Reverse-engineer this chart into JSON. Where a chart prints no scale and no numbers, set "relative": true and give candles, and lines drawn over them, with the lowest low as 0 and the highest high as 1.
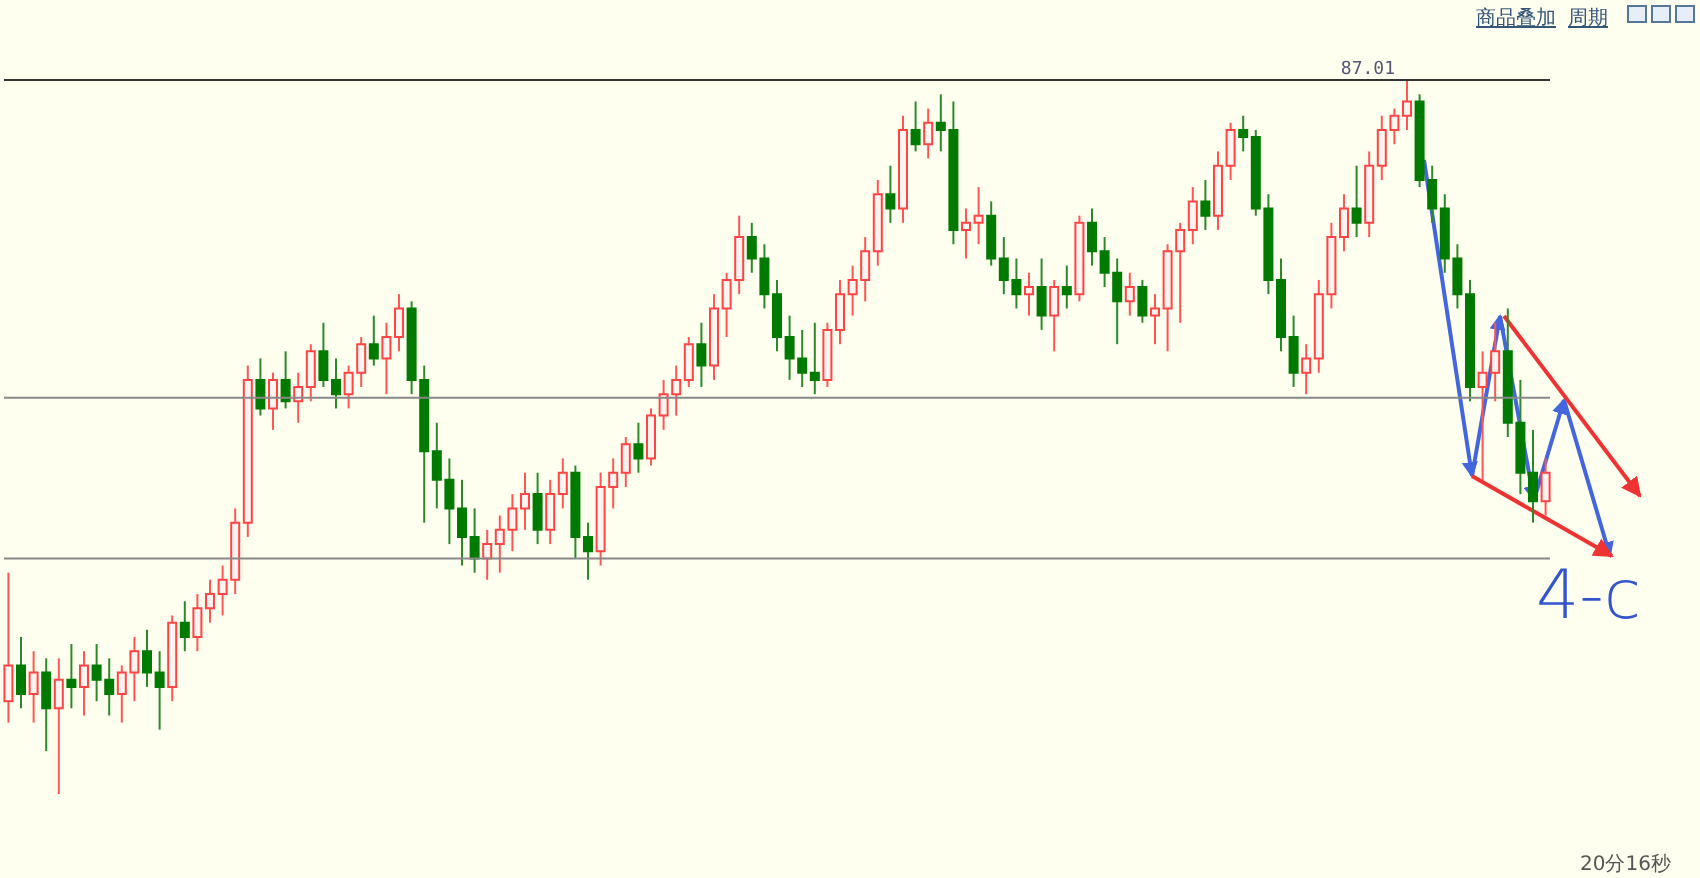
{
  "chart_data": {
    "type": "candlestick",
    "relative": true,
    "categories": [
      null,
      null,
      null,
      null,
      null,
      null,
      null,
      null,
      null,
      null,
      null,
      null,
      null,
      null,
      null,
      null,
      null,
      null,
      null,
      null,
      null,
      null,
      null,
      null,
      null,
      null,
      null,
      null,
      null,
      null,
      null,
      null,
      null,
      null,
      null,
      null,
      null,
      null,
      null,
      null,
      null,
      null,
      null,
      null,
      null,
      null,
      null,
      null,
      null,
      null,
      null,
      null,
      null,
      null,
      null,
      null,
      null,
      null,
      null,
      null,
      null,
      null,
      null,
      null,
      null,
      null,
      null,
      null,
      null,
      null,
      null,
      null,
      null,
      null,
      null,
      null,
      null,
      null,
      null,
      null,
      null,
      null,
      null,
      null,
      null,
      null,
      null,
      null,
      null,
      null,
      null,
      null,
      null,
      null,
      null,
      null,
      null,
      null,
      null,
      null,
      null,
      null,
      null,
      null,
      null,
      null,
      null,
      null,
      null,
      null,
      null,
      null,
      null,
      null,
      null,
      null,
      null,
      null,
      null,
      null,
      null,
      null,
      null
    ],
    "ohlc": [
      [
        0.13,
        0.31,
        0.1,
        0.18
      ],
      [
        0.18,
        0.22,
        0.12,
        0.14
      ],
      [
        0.14,
        0.2,
        0.1,
        0.17
      ],
      [
        0.17,
        0.19,
        0.06,
        0.12
      ],
      [
        0.12,
        0.19,
        0.0,
        0.16
      ],
      [
        0.16,
        0.21,
        0.12,
        0.15
      ],
      [
        0.15,
        0.2,
        0.11,
        0.18
      ],
      [
        0.18,
        0.21,
        0.13,
        0.16
      ],
      [
        0.16,
        0.19,
        0.11,
        0.14
      ],
      [
        0.14,
        0.18,
        0.1,
        0.17
      ],
      [
        0.17,
        0.22,
        0.13,
        0.2
      ],
      [
        0.2,
        0.23,
        0.15,
        0.17
      ],
      [
        0.17,
        0.2,
        0.09,
        0.15
      ],
      [
        0.15,
        0.25,
        0.13,
        0.24
      ],
      [
        0.24,
        0.27,
        0.2,
        0.22
      ],
      [
        0.22,
        0.28,
        0.2,
        0.26
      ],
      [
        0.26,
        0.3,
        0.24,
        0.28
      ],
      [
        0.28,
        0.32,
        0.25,
        0.3
      ],
      [
        0.3,
        0.4,
        0.28,
        0.38
      ],
      [
        0.38,
        0.6,
        0.36,
        0.58
      ],
      [
        0.58,
        0.61,
        0.53,
        0.54
      ],
      [
        0.54,
        0.59,
        0.51,
        0.58
      ],
      [
        0.58,
        0.62,
        0.54,
        0.55
      ],
      [
        0.55,
        0.59,
        0.52,
        0.57
      ],
      [
        0.57,
        0.63,
        0.55,
        0.62
      ],
      [
        0.62,
        0.66,
        0.57,
        0.58
      ],
      [
        0.58,
        0.61,
        0.54,
        0.56
      ],
      [
        0.56,
        0.6,
        0.54,
        0.59
      ],
      [
        0.59,
        0.64,
        0.57,
        0.63
      ],
      [
        0.63,
        0.67,
        0.6,
        0.61
      ],
      [
        0.61,
        0.66,
        0.56,
        0.64
      ],
      [
        0.64,
        0.7,
        0.62,
        0.68
      ],
      [
        0.68,
        0.69,
        0.56,
        0.58
      ],
      [
        0.58,
        0.6,
        0.38,
        0.48
      ],
      [
        0.48,
        0.52,
        0.4,
        0.44
      ],
      [
        0.44,
        0.47,
        0.35,
        0.4
      ],
      [
        0.4,
        0.44,
        0.32,
        0.36
      ],
      [
        0.36,
        0.4,
        0.31,
        0.33
      ],
      [
        0.33,
        0.37,
        0.3,
        0.35
      ],
      [
        0.35,
        0.39,
        0.31,
        0.37
      ],
      [
        0.37,
        0.42,
        0.34,
        0.4
      ],
      [
        0.4,
        0.45,
        0.37,
        0.42
      ],
      [
        0.42,
        0.45,
        0.35,
        0.37
      ],
      [
        0.37,
        0.44,
        0.35,
        0.42
      ],
      [
        0.42,
        0.47,
        0.4,
        0.45
      ],
      [
        0.45,
        0.46,
        0.33,
        0.36
      ],
      [
        0.36,
        0.38,
        0.3,
        0.34
      ],
      [
        0.34,
        0.45,
        0.32,
        0.43
      ],
      [
        0.43,
        0.47,
        0.4,
        0.45
      ],
      [
        0.45,
        0.5,
        0.43,
        0.49
      ],
      [
        0.49,
        0.52,
        0.45,
        0.47
      ],
      [
        0.47,
        0.54,
        0.46,
        0.53
      ],
      [
        0.53,
        0.58,
        0.51,
        0.56
      ],
      [
        0.56,
        0.6,
        0.53,
        0.58
      ],
      [
        0.58,
        0.64,
        0.57,
        0.63
      ],
      [
        0.63,
        0.66,
        0.57,
        0.6
      ],
      [
        0.6,
        0.7,
        0.58,
        0.68
      ],
      [
        0.68,
        0.73,
        0.64,
        0.72
      ],
      [
        0.72,
        0.81,
        0.7,
        0.78
      ],
      [
        0.78,
        0.8,
        0.73,
        0.75
      ],
      [
        0.75,
        0.77,
        0.68,
        0.7
      ],
      [
        0.7,
        0.72,
        0.62,
        0.64
      ],
      [
        0.64,
        0.67,
        0.58,
        0.61
      ],
      [
        0.61,
        0.65,
        0.57,
        0.59
      ],
      [
        0.59,
        0.66,
        0.56,
        0.58
      ],
      [
        0.58,
        0.66,
        0.57,
        0.65
      ],
      [
        0.65,
        0.72,
        0.63,
        0.7
      ],
      [
        0.7,
        0.74,
        0.67,
        0.72
      ],
      [
        0.72,
        0.78,
        0.69,
        0.76
      ],
      [
        0.76,
        0.86,
        0.74,
        0.84
      ],
      [
        0.84,
        0.88,
        0.8,
        0.82
      ],
      [
        0.82,
        0.95,
        0.8,
        0.93
      ],
      [
        0.93,
        0.97,
        0.9,
        0.91
      ],
      [
        0.91,
        0.96,
        0.89,
        0.94
      ],
      [
        0.94,
        0.98,
        0.9,
        0.93
      ],
      [
        0.93,
        0.97,
        0.77,
        0.79
      ],
      [
        0.79,
        0.82,
        0.75,
        0.8
      ],
      [
        0.8,
        0.85,
        0.77,
        0.81
      ],
      [
        0.81,
        0.83,
        0.74,
        0.75
      ],
      [
        0.75,
        0.78,
        0.7,
        0.72
      ],
      [
        0.72,
        0.75,
        0.68,
        0.7
      ],
      [
        0.7,
        0.73,
        0.67,
        0.71
      ],
      [
        0.71,
        0.75,
        0.65,
        0.67
      ],
      [
        0.67,
        0.72,
        0.62,
        0.71
      ],
      [
        0.71,
        0.74,
        0.68,
        0.7
      ],
      [
        0.7,
        0.81,
        0.69,
        0.8
      ],
      [
        0.8,
        0.82,
        0.74,
        0.76
      ],
      [
        0.76,
        0.78,
        0.71,
        0.73
      ],
      [
        0.73,
        0.75,
        0.63,
        0.69
      ],
      [
        0.69,
        0.73,
        0.67,
        0.71
      ],
      [
        0.71,
        0.72,
        0.66,
        0.67
      ],
      [
        0.67,
        0.7,
        0.63,
        0.68
      ],
      [
        0.68,
        0.77,
        0.62,
        0.76
      ],
      [
        0.76,
        0.8,
        0.66,
        0.79
      ],
      [
        0.79,
        0.85,
        0.77,
        0.83
      ],
      [
        0.83,
        0.86,
        0.79,
        0.81
      ],
      [
        0.81,
        0.9,
        0.79,
        0.88
      ],
      [
        0.88,
        0.94,
        0.86,
        0.93
      ],
      [
        0.93,
        0.95,
        0.9,
        0.92
      ],
      [
        0.92,
        0.93,
        0.81,
        0.82
      ],
      [
        0.82,
        0.84,
        0.7,
        0.72
      ],
      [
        0.72,
        0.75,
        0.62,
        0.64
      ],
      [
        0.64,
        0.67,
        0.57,
        0.59
      ],
      [
        0.59,
        0.63,
        0.56,
        0.61
      ],
      [
        0.61,
        0.72,
        0.59,
        0.7
      ],
      [
        0.7,
        0.8,
        0.68,
        0.78
      ],
      [
        0.78,
        0.84,
        0.76,
        0.82
      ],
      [
        0.82,
        0.88,
        0.78,
        0.8
      ],
      [
        0.8,
        0.9,
        0.78,
        0.88
      ],
      [
        0.88,
        0.95,
        0.86,
        0.93
      ],
      [
        0.93,
        0.96,
        0.91,
        0.95
      ],
      [
        0.95,
        1.0,
        0.93,
        0.97
      ],
      [
        0.97,
        0.98,
        0.85,
        0.86
      ],
      [
        0.86,
        0.88,
        0.8,
        0.82
      ],
      [
        0.82,
        0.84,
        0.73,
        0.75
      ],
      [
        0.75,
        0.77,
        0.68,
        0.7
      ],
      [
        0.7,
        0.72,
        0.55,
        0.57
      ],
      [
        0.57,
        0.62,
        0.44,
        0.59
      ],
      [
        0.59,
        0.66,
        0.55,
        0.62
      ],
      [
        0.62,
        0.68,
        0.5,
        0.52
      ],
      [
        0.52,
        0.58,
        0.42,
        0.45
      ],
      [
        0.45,
        0.51,
        0.38,
        0.41
      ],
      [
        0.41,
        0.47,
        0.39,
        0.45
      ]
    ],
    "ref_lines": [
      {
        "axis": "y",
        "value": 1,
        "label": null,
        "color": "#333333"
      },
      {
        "axis": "y",
        "value": 0.555,
        "label": null,
        "color": "#888888"
      },
      {
        "axis": "y",
        "value": 0.33,
        "label": null,
        "color": "#888888"
      }
    ],
    "annotations": [
      "87.01",
      "4-c",
      "商品叠加",
      "周期",
      "20分16秒"
    ]
  }
}
